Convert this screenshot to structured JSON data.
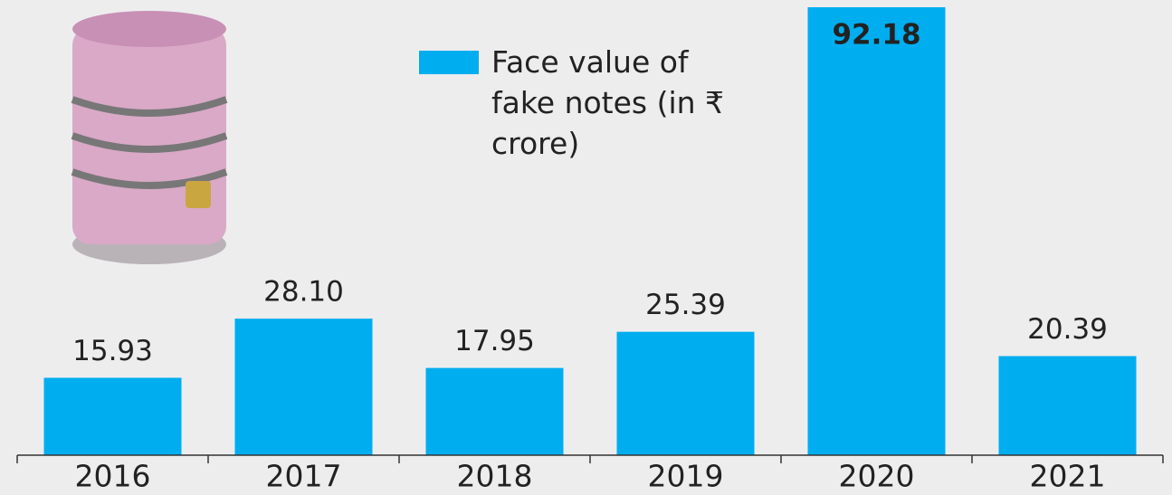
{
  "chart_data": {
    "type": "bar",
    "categories": [
      "2016",
      "2017",
      "2018",
      "2019",
      "2020",
      "2021"
    ],
    "series": [
      {
        "name": "Face value of fake notes (in ₹ crore)",
        "color": "#00aeef",
        "values": [
          15.93,
          28.1,
          17.95,
          25.39,
          92.18,
          20.39
        ],
        "value_labels": [
          "15.93",
          "28.10",
          "17.95",
          "25.39",
          "92.18",
          "20.39"
        ]
      }
    ],
    "legend": "top-center"
  }
}
